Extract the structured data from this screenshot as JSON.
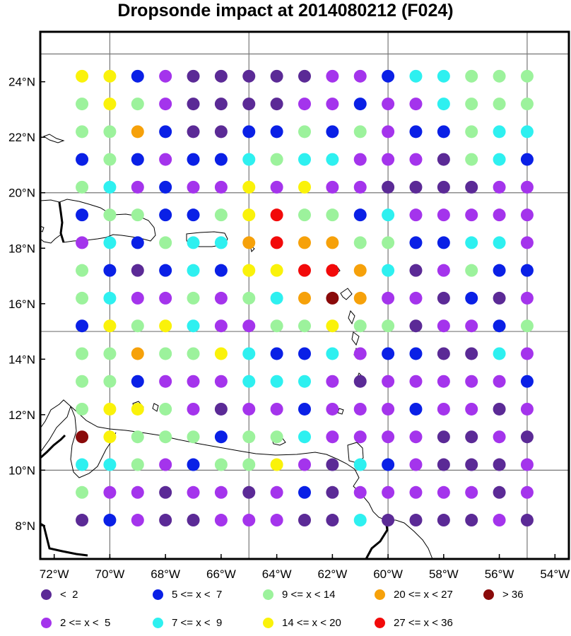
{
  "title": "Dropsonde impact at 2014080212 (F024)",
  "axes": {
    "x_ticks": [
      "72°W",
      "70°W",
      "68°W",
      "66°W",
      "64°W",
      "62°W",
      "60°W",
      "58°W",
      "56°W",
      "54°W"
    ],
    "y_ticks": [
      "24°N",
      "22°N",
      "20°N",
      "18°N",
      "16°N",
      "14°N",
      "12°N",
      "10°N",
      "8°N"
    ],
    "grid_lon": [
      -70,
      -65,
      -60,
      -55
    ],
    "grid_lat": [
      10,
      15,
      20,
      25
    ]
  },
  "legend": [
    {
      "label": "<  2",
      "color": "#5b2a96"
    },
    {
      "label": "2 <= x <  5",
      "color": "#a434ec"
    },
    {
      "label": "5 <= x <  7",
      "color": "#0a20e6"
    },
    {
      "label": "7 <= x <  9",
      "color": "#2ef0f0"
    },
    {
      "label": "9 <= x < 14",
      "color": "#9cf29c"
    },
    {
      "label": "14 <= x < 20",
      "color": "#faf20a"
    },
    {
      "label": "20 <= x < 27",
      "color": "#f6a10a"
    },
    {
      "label": "27 <= x < 36",
      "color": "#f20a0a"
    },
    {
      "label": "> 36",
      "color": "#8a0a0a"
    }
  ],
  "chart_data": {
    "type": "scatter",
    "title": "Dropsonde impact at 2014080212 (F024)",
    "x_range": [
      -72.5,
      -53.5
    ],
    "y_range": [
      6.8,
      25.8
    ],
    "grid": true,
    "lons": [
      -71,
      -70,
      -69,
      -68,
      -67,
      -66,
      -65,
      -64,
      -63,
      -62,
      -61,
      -60,
      -59,
      -58,
      -57,
      -56,
      -55
    ],
    "lats": [
      24.2,
      23.2,
      22.2,
      21.2,
      20.2,
      19.2,
      18.2,
      17.2,
      16.2,
      15.2,
      14.2,
      13.2,
      12.2,
      11.2,
      10.2,
      9.2,
      8.2
    ],
    "legend_position": "bottom",
    "category_codes": "0: <2, 1: 2-5, 2: 5-7, 3: 7-9, 4: 9-14, 5: 14-20, 6: 20-27, 7: 27-36, 8: >36",
    "rows": [
      [
        5,
        5,
        2,
        1,
        0,
        0,
        0,
        0,
        0,
        1,
        1,
        2,
        3,
        3,
        4,
        4,
        4
      ],
      [
        4,
        5,
        4,
        1,
        0,
        0,
        0,
        0,
        1,
        1,
        2,
        1,
        1,
        3,
        4,
        4,
        4
      ],
      [
        4,
        4,
        6,
        2,
        0,
        0,
        2,
        2,
        4,
        2,
        4,
        1,
        2,
        2,
        4,
        3,
        3
      ],
      [
        2,
        4,
        2,
        1,
        2,
        2,
        3,
        4,
        3,
        3,
        1,
        1,
        1,
        0,
        4,
        3,
        2
      ],
      [
        4,
        3,
        1,
        2,
        1,
        1,
        5,
        1,
        5,
        1,
        1,
        0,
        0,
        0,
        0,
        1,
        1
      ],
      [
        2,
        4,
        4,
        2,
        2,
        4,
        5,
        7,
        4,
        4,
        2,
        3,
        1,
        1,
        1,
        1,
        1
      ],
      [
        1,
        3,
        2,
        4,
        3,
        3,
        6,
        7,
        6,
        6,
        4,
        4,
        2,
        2,
        3,
        3,
        1
      ],
      [
        4,
        2,
        0,
        2,
        3,
        2,
        5,
        5,
        7,
        7,
        6,
        3,
        0,
        1,
        4,
        2,
        2
      ],
      [
        4,
        3,
        1,
        1,
        4,
        1,
        4,
        3,
        6,
        8,
        6,
        1,
        1,
        0,
        2,
        0,
        1
      ],
      [
        2,
        5,
        4,
        5,
        3,
        1,
        1,
        4,
        4,
        5,
        4,
        4,
        0,
        1,
        1,
        2,
        4
      ],
      [
        4,
        4,
        6,
        4,
        4,
        5,
        3,
        2,
        2,
        3,
        1,
        2,
        2,
        0,
        0,
        3,
        1
      ],
      [
        4,
        4,
        2,
        1,
        1,
        1,
        3,
        3,
        3,
        1,
        0,
        1,
        1,
        1,
        1,
        1,
        2
      ],
      [
        4,
        5,
        5,
        4,
        1,
        0,
        1,
        1,
        2,
        1,
        1,
        1,
        2,
        1,
        1,
        0,
        1
      ],
      [
        8,
        5,
        4,
        4,
        4,
        2,
        4,
        4,
        3,
        1,
        1,
        1,
        1,
        0,
        0,
        1,
        0
      ],
      [
        3,
        3,
        4,
        1,
        2,
        4,
        4,
        5,
        1,
        0,
        3,
        2,
        1,
        0,
        0,
        0,
        1
      ],
      [
        4,
        1,
        1,
        0,
        1,
        1,
        0,
        1,
        2,
        0,
        1,
        1,
        1,
        1,
        1,
        0,
        1
      ],
      [
        0,
        2,
        1,
        0,
        0,
        1,
        1,
        1,
        0,
        0,
        3,
        0,
        0,
        0,
        0,
        1,
        0
      ]
    ]
  }
}
